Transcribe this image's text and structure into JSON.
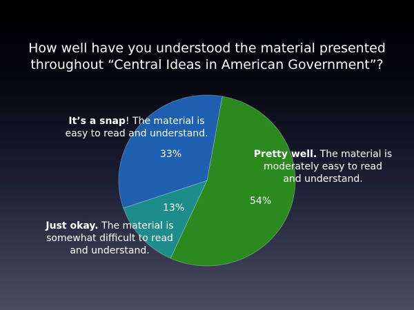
{
  "chart_data": {
    "type": "pie",
    "title": "How well have you understood the material presented throughout “Central Ideas in American Government”?",
    "title_lines": [
      "How well have you understood the material presented",
      "throughout “Central Ideas in American Government”?"
    ],
    "slices": [
      {
        "key": "pretty_well",
        "value": 54,
        "pct_label": "54%",
        "color": "#2a8a1e",
        "caption_bold": "Pretty well.",
        "caption_rest": " The material is",
        "caption_lines": [
          "moderately easy to read",
          "and understand."
        ]
      },
      {
        "key": "just_okay",
        "value": 13,
        "pct_label": "13%",
        "color": "#1f8c8c",
        "caption_bold": "Just okay.",
        "caption_rest": " The material is",
        "caption_lines": [
          "somewhat difficult to read",
          "and understand."
        ]
      },
      {
        "key": "snap",
        "value": 33,
        "pct_label": "33%",
        "color": "#1f5fb0",
        "caption_bold": "It’s a snap",
        "caption_rest": "! The material is",
        "caption_lines": [
          "easy to read and understand."
        ]
      }
    ]
  }
}
